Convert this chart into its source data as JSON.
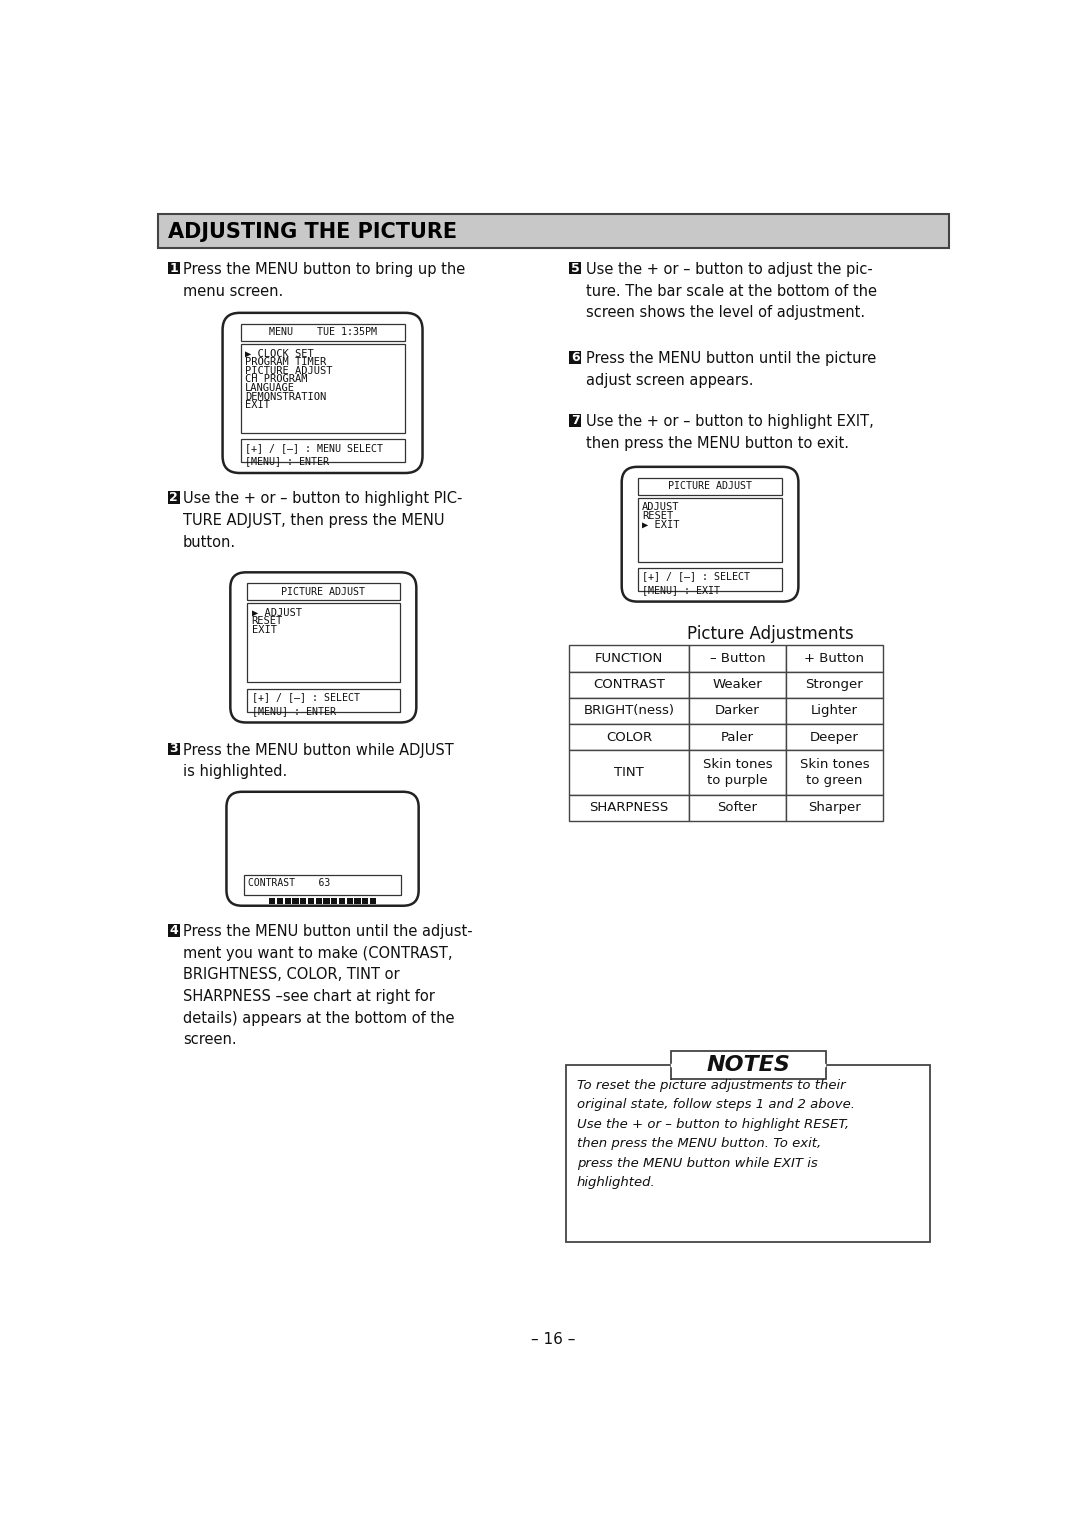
{
  "page_bg": "#ffffff",
  "header_bg": "#c8c8c8",
  "header_text": "ADJUSTING THE PICTURE",
  "header_fontsize": 15,
  "body_fontsize": 10.5,
  "title": "– 16 –",
  "menu1_title": "MENU    TUE 1:35PM",
  "menu1_items": [
    "▶ CLOCK SET",
    "PROGRAM TIMER",
    "PICTURE ADJUST",
    "CH PROGRAM",
    "LANGUAGE",
    "DEMONSTRATION",
    "EXIT"
  ],
  "menu1_bottom": "[+] / [–] : MENU SELECT\n[MENU] : ENTER",
  "menu2_title": "PICTURE ADJUST",
  "menu2_items": [
    "▶ ADJUST",
    "RESET",
    "EXIT"
  ],
  "menu2_bottom": "[+] / [–] : SELECT\n[MENU] : ENTER",
  "menu3_content": "CONTRAST    63",
  "menu7_title": "PICTURE ADJUST",
  "menu7_items": [
    "ADJUST",
    "RESET",
    "▶ EXIT"
  ],
  "menu7_bottom": "[+] / [–] : SELECT\n[MENU] : EXIT",
  "table_title": "Picture Adjustments",
  "table_headers": [
    "FUNCTION",
    "– Button",
    "+ Button"
  ],
  "table_rows": [
    [
      "CONTRAST",
      "Weaker",
      "Stronger"
    ],
    [
      "BRIGHT(ness)",
      "Darker",
      "Lighter"
    ],
    [
      "COLOR",
      "Paler",
      "Deeper"
    ],
    [
      "TINT",
      "Skin tones\nto purple",
      "Skin tones\nto green"
    ],
    [
      "SHARPNESS",
      "Softer",
      "Sharper"
    ]
  ],
  "notes_title": "NOTES",
  "notes_text": "To reset the picture adjustments to their\noriginal state, follow steps 1 and 2 above.\nUse the + or – button to highlight RESET,\nthen press the MENU button. To exit,\npress the MENU button while EXIT is\nhighlighted."
}
